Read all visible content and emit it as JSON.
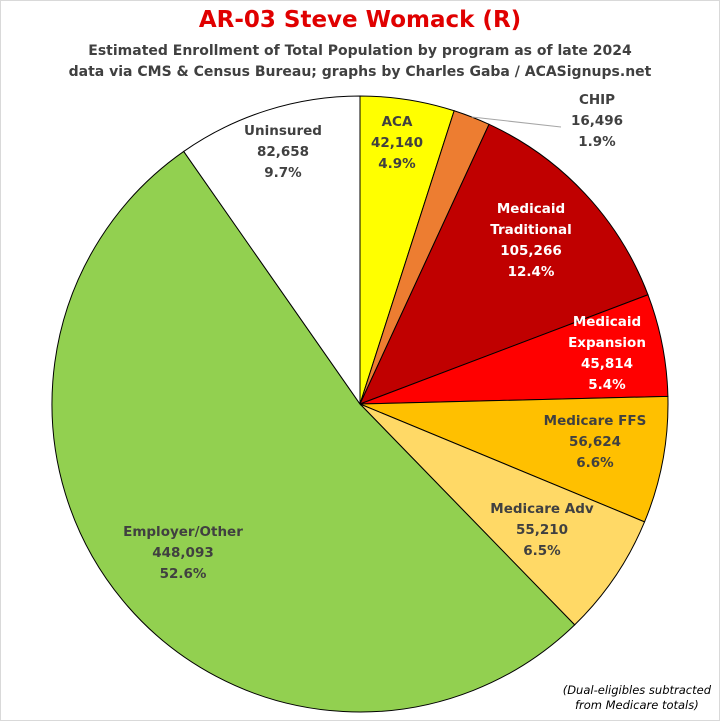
{
  "title": "AR-03 Steve Womack (R)",
  "subtitle_line1": "Estimated Enrollment of Total Population by program as of late 2024",
  "subtitle_line2": "data via CMS & Census Bureau; graphs by Charles Gaba / ACASignups.net",
  "footnote_line1": "(Dual-eligibles subtracted",
  "footnote_line2": "from Medicare totals)",
  "chart_data": {
    "type": "pie",
    "title": "AR-03 Steve Womack (R)",
    "slices": [
      {
        "name": "ACA",
        "value": 42140,
        "value_label": "42,140",
        "percent": "4.9%",
        "color": "#ffff00",
        "text_color": "#404040"
      },
      {
        "name": "CHIP",
        "value": 16496,
        "value_label": "16,496",
        "percent": "1.9%",
        "color": "#ed7d31",
        "text_color": "#404040"
      },
      {
        "name": "Medicaid Traditional",
        "value": 105266,
        "value_label": "105,266",
        "percent": "12.4%",
        "color": "#c00000",
        "text_color": "#ffffff"
      },
      {
        "name": "Medicaid Expansion",
        "value": 45814,
        "value_label": "45,814",
        "percent": "5.4%",
        "color": "#ff0000",
        "text_color": "#ffffff"
      },
      {
        "name": "Medicare FFS",
        "value": 56624,
        "value_label": "56,624",
        "percent": "6.6%",
        "color": "#ffc000",
        "text_color": "#404040"
      },
      {
        "name": "Medicare Adv",
        "value": 55210,
        "value_label": "55,210",
        "percent": "6.5%",
        "color": "#ffd966",
        "text_color": "#404040"
      },
      {
        "name": "Employer/Other",
        "value": 448093,
        "value_label": "448,093",
        "percent": "52.6%",
        "color": "#92d050",
        "text_color": "#404040"
      },
      {
        "name": "Uninsured",
        "value": 82658,
        "value_label": "82,658",
        "percent": "9.7%",
        "color": "#ffffff",
        "text_color": "#404040"
      }
    ]
  }
}
